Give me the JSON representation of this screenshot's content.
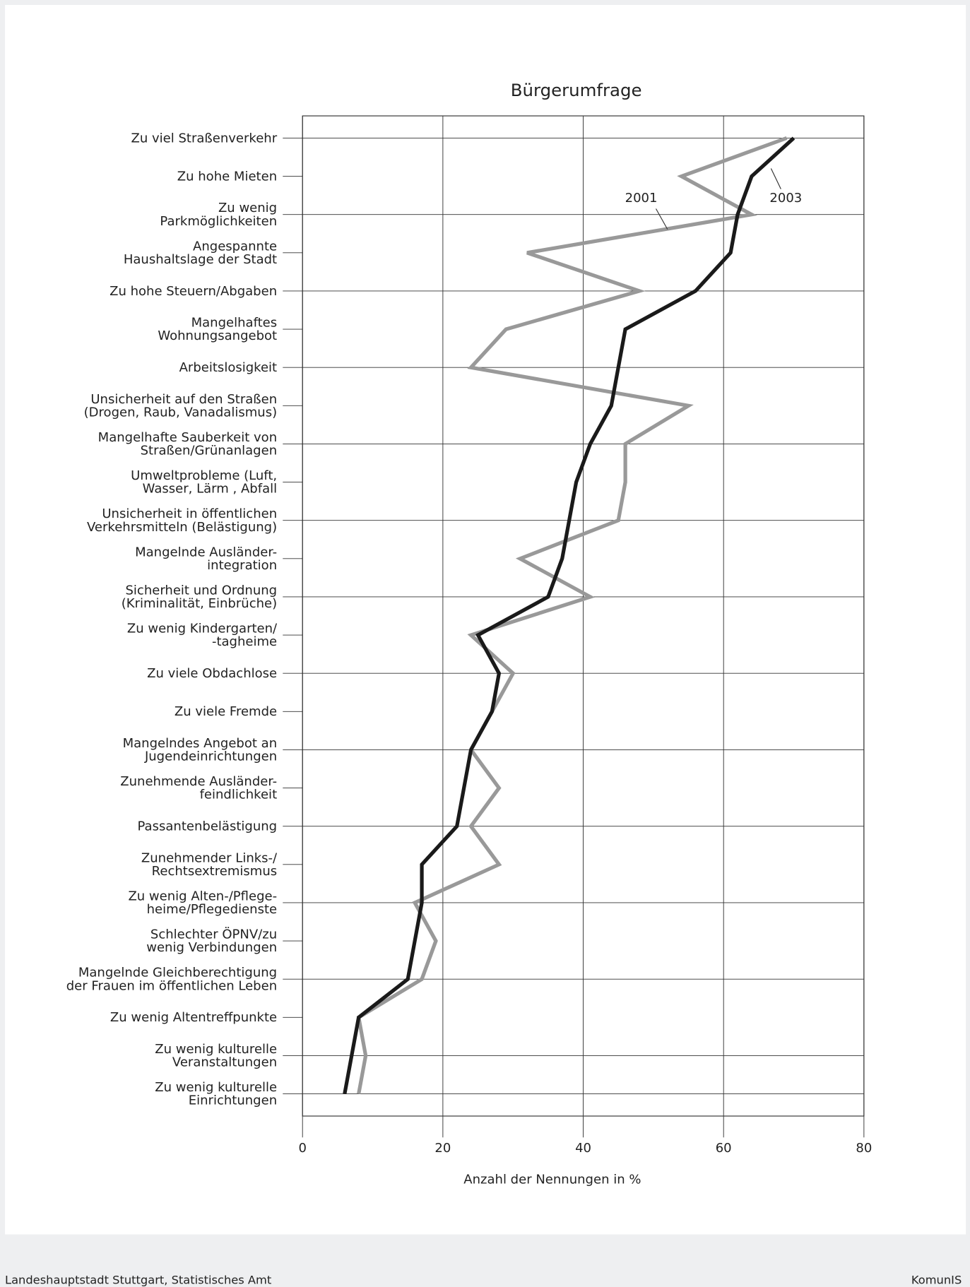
{
  "chart_data": {
    "type": "line",
    "orientation": "horizontal",
    "title": "Bürgerumfrage",
    "xlabel": "Anzahl der Nennungen in %",
    "categories": [
      "Zu viel Straßenverkehr",
      "Zu hohe Mieten",
      "Zu wenig\nParkmöglichkeiten",
      "Angespannte\nHaushaltslage der Stadt",
      "Zu hohe Steuern/Abgaben",
      "Mangelhaftes\nWohnungsangebot",
      "Arbeitslosigkeit",
      "Unsicherheit auf den Straßen\n(Drogen, Raub, Vanadalismus)",
      "Mangelhafte Sauberkeit von\nStraßen/Grünanlagen",
      "Umweltprobleme (Luft,\nWasser, Lärm , Abfall",
      "Unsicherheit in öffentlichen\nVerkehrsmitteln (Belästigung)",
      "Mangelnde Ausländer-\nintegration",
      "Sicherheit und Ordnung\n(Kriminalität, Einbrüche)",
      "Zu wenig Kindergarten/\n-tagheime",
      "Zu viele Obdachlose",
      "Zu viele Fremde",
      "Mangelndes Angebot an\nJugendeinrichtungen",
      "Zunehmende Ausländer-\nfeindlichkeit",
      "Passantenbelästigung",
      "Zunehmender Links-/\nRechtsextremismus",
      "Zu wenig Alten-/Pflege-\nheime/Pflegedienste",
      "Schlechter ÖPNV/zu\nwenig Verbindungen",
      "Mangelnde Gleichberechtigung\nder Frauen im öffentlichen Leben",
      "Zu wenig Altentreffpunkte",
      "Zu wenig kulturelle\nVeranstaltungen",
      "Zu wenig kulturelle\nEinrichtungen"
    ],
    "series": [
      {
        "name": "2001",
        "color": "#999999",
        "values": [
          69,
          54,
          64,
          32,
          48,
          29,
          24,
          55,
          46,
          46,
          45,
          31,
          41,
          24,
          30,
          27,
          24,
          28,
          24,
          28,
          16,
          19,
          17,
          8,
          9,
          8
        ]
      },
      {
        "name": "2003",
        "color": "#1a1a1a",
        "values": [
          70,
          64,
          62,
          61,
          56,
          46,
          45,
          44,
          41,
          39,
          38,
          37,
          35,
          25,
          28,
          27,
          24,
          23,
          22,
          17,
          17,
          16,
          15,
          8,
          7,
          6
        ]
      }
    ],
    "xlim": [
      0,
      80
    ],
    "xticks": [
      0,
      20,
      40,
      60,
      80
    ],
    "grid": true
  },
  "footer": {
    "source": "Landeshauptstadt Stuttgart, Statistisches Amt",
    "logo": "KomunIS"
  }
}
